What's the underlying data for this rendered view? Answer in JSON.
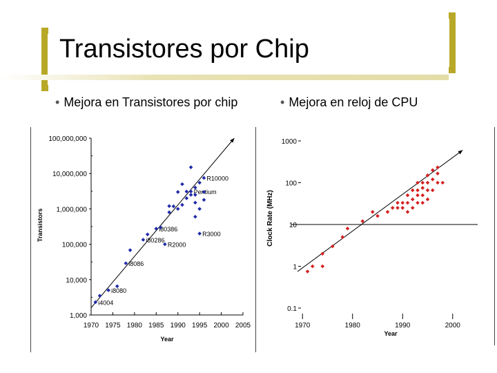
{
  "slide": {
    "title": "Transistores por Chip",
    "bullet_left": "Mejora en Transistores por chip",
    "bullet_right": "Mejora en reloj de CPU",
    "accent_color": "#b8a828"
  },
  "chart_data": [
    {
      "type": "scatter",
      "scale_y": "log",
      "xlabel": "Year",
      "ylabel": "Transistors",
      "xlim": [
        1970,
        2005
      ],
      "ylim": [
        1000,
        100000000
      ],
      "xticks": [
        "1970",
        "1975",
        "1980",
        "1985",
        "1990",
        "1995",
        "2000",
        "2005"
      ],
      "yticks": [
        "1,000",
        "10,000",
        "100,000",
        "1,000,000",
        "10,000,000",
        "100,000,000"
      ],
      "color": "#1f2aa8",
      "points": [
        {
          "x": 1971,
          "y": 2300,
          "label": "i4004"
        },
        {
          "x": 1972,
          "y": 3500
        },
        {
          "x": 1974,
          "y": 5000,
          "label": "i8080"
        },
        {
          "x": 1976,
          "y": 6500
        },
        {
          "x": 1978,
          "y": 29000,
          "label": "i8086"
        },
        {
          "x": 1979,
          "y": 68000
        },
        {
          "x": 1982,
          "y": 134000,
          "label": "i80286"
        },
        {
          "x": 1983,
          "y": 190000
        },
        {
          "x": 1985,
          "y": 275000,
          "label": "i80386"
        },
        {
          "x": 1986,
          "y": 300000
        },
        {
          "x": 1987,
          "y": 100000,
          "label": "R2000"
        },
        {
          "x": 1988,
          "y": 800000
        },
        {
          "x": 1988,
          "y": 1200000
        },
        {
          "x": 1989,
          "y": 1180000
        },
        {
          "x": 1990,
          "y": 1000000
        },
        {
          "x": 1990,
          "y": 3000000
        },
        {
          "x": 1991,
          "y": 1300000
        },
        {
          "x": 1991,
          "y": 5000000
        },
        {
          "x": 1992,
          "y": 2000000
        },
        {
          "x": 1992,
          "y": 3100000
        },
        {
          "x": 1993,
          "y": 3100000,
          "label": "Pentium"
        },
        {
          "x": 1993,
          "y": 2500000
        },
        {
          "x": 1993,
          "y": 15000000
        },
        {
          "x": 1994,
          "y": 1500000
        },
        {
          "x": 1994,
          "y": 2500000
        },
        {
          "x": 1994,
          "y": 600000
        },
        {
          "x": 1994,
          "y": 4000000
        },
        {
          "x": 1995,
          "y": 5500000
        },
        {
          "x": 1995,
          "y": 200000,
          "label": "R3000"
        },
        {
          "x": 1995,
          "y": 1000000
        },
        {
          "x": 1996,
          "y": 7500000,
          "label": "R10000"
        },
        {
          "x": 1996,
          "y": 3000000
        },
        {
          "x": 1996,
          "y": 1800000
        }
      ],
      "trend": {
        "from": {
          "x": 1970,
          "y": 1600
        },
        "to": {
          "x": 2003,
          "y": 100000000
        }
      }
    },
    {
      "type": "scatter",
      "scale_y": "log",
      "xlabel": "Year",
      "ylabel": "Clock Rate (MHz)",
      "xlim": [
        1965,
        2005
      ],
      "ylim": [
        0.1,
        1000
      ],
      "xticks": [
        "1970",
        "1980",
        "1990",
        "2000"
      ],
      "yticks": [
        "0.1",
        "1",
        "10",
        "100",
        "1000"
      ],
      "color": "#d42020",
      "points": [
        {
          "x": 1971,
          "y": 0.75
        },
        {
          "x": 1972,
          "y": 1
        },
        {
          "x": 1974,
          "y": 1
        },
        {
          "x": 1974,
          "y": 2
        },
        {
          "x": 1976,
          "y": 3
        },
        {
          "x": 1978,
          "y": 5
        },
        {
          "x": 1979,
          "y": 8
        },
        {
          "x": 1982,
          "y": 12
        },
        {
          "x": 1984,
          "y": 20
        },
        {
          "x": 1985,
          "y": 16
        },
        {
          "x": 1987,
          "y": 20
        },
        {
          "x": 1988,
          "y": 25
        },
        {
          "x": 1989,
          "y": 25
        },
        {
          "x": 1989,
          "y": 33
        },
        {
          "x": 1990,
          "y": 25
        },
        {
          "x": 1990,
          "y": 33
        },
        {
          "x": 1991,
          "y": 20
        },
        {
          "x": 1991,
          "y": 33
        },
        {
          "x": 1991,
          "y": 50
        },
        {
          "x": 1992,
          "y": 25
        },
        {
          "x": 1992,
          "y": 40
        },
        {
          "x": 1992,
          "y": 66
        },
        {
          "x": 1993,
          "y": 33
        },
        {
          "x": 1993,
          "y": 50
        },
        {
          "x": 1993,
          "y": 66
        },
        {
          "x": 1993,
          "y": 100
        },
        {
          "x": 1994,
          "y": 33
        },
        {
          "x": 1994,
          "y": 50
        },
        {
          "x": 1994,
          "y": 75
        },
        {
          "x": 1994,
          "y": 100
        },
        {
          "x": 1995,
          "y": 40
        },
        {
          "x": 1995,
          "y": 66
        },
        {
          "x": 1995,
          "y": 100
        },
        {
          "x": 1995,
          "y": 150
        },
        {
          "x": 1996,
          "y": 66
        },
        {
          "x": 1996,
          "y": 120
        },
        {
          "x": 1996,
          "y": 200
        },
        {
          "x": 1997,
          "y": 100
        },
        {
          "x": 1997,
          "y": 166
        },
        {
          "x": 1997,
          "y": 233
        },
        {
          "x": 1998,
          "y": 100
        }
      ],
      "trend": {
        "from": {
          "x": 1969,
          "y": 0.75
        },
        "to": {
          "x": 2002,
          "y": 600
        }
      },
      "reference_line_y": 10
    }
  ]
}
